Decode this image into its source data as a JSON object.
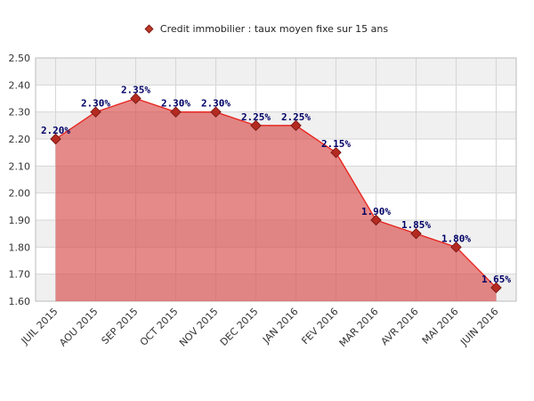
{
  "legend": {
    "label": "Credit immobilier : taux moyen fixe sur 15 ans"
  },
  "colors": {
    "area": "#d9534f",
    "line": "#e8201a",
    "marker": "#b52a20",
    "label": "#000066"
  },
  "chart_data": {
    "type": "area",
    "categories": [
      "JUIL 2015",
      "AOU 2015",
      "SEP 2015",
      "OCT 2015",
      "NOV 2015",
      "DEC 2015",
      "JAN 2016",
      "FEV 2016",
      "MAR 2016",
      "AVR 2016",
      "MAI 2016",
      "JUIN 2016"
    ],
    "series": [
      {
        "name": "Credit immobilier : taux moyen fixe sur 15 ans",
        "values": [
          2.2,
          2.3,
          2.35,
          2.3,
          2.3,
          2.25,
          2.25,
          2.15,
          1.9,
          1.85,
          1.8,
          1.65
        ],
        "labels": [
          "2.20%",
          "2.30%",
          "2.35%",
          "2.30%",
          "2.30%",
          "2.25%",
          "2.25%",
          "2.15%",
          "1.90%",
          "1.85%",
          "1.80%",
          "1.65%"
        ]
      }
    ],
    "ylim": [
      1.6,
      2.5
    ],
    "yticks": [
      "1.60",
      "1.70",
      "1.80",
      "1.90",
      "2.00",
      "2.10",
      "2.20",
      "2.30",
      "2.40",
      "2.50"
    ],
    "grid": true,
    "legend_position": "top-center",
    "title": "",
    "xlabel": "",
    "ylabel": ""
  }
}
